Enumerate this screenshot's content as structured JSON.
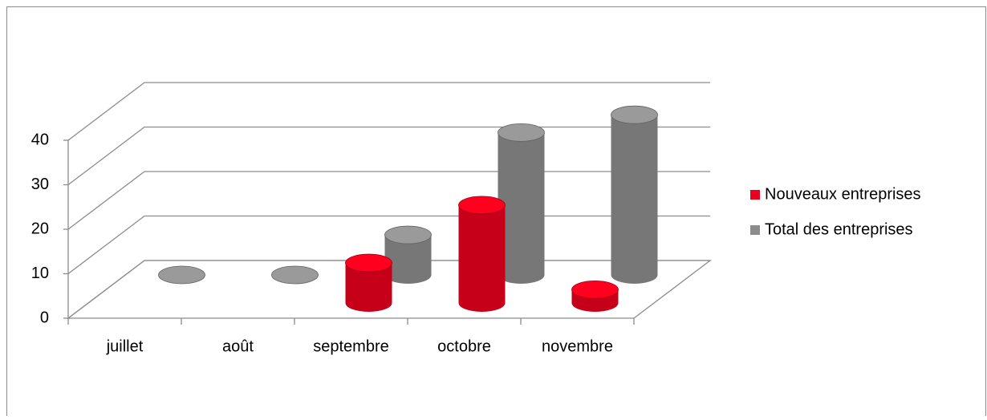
{
  "chart_data": {
    "type": "bar3d",
    "categories": [
      "juillet",
      "août",
      "septembre",
      "octobre",
      "novembre"
    ],
    "series": [
      {
        "name": "Nouveaux entreprises",
        "color": "#e8001c",
        "values": [
          null,
          null,
          9,
          22,
          3
        ]
      },
      {
        "name": "Total des entreprises",
        "color": "#8c8c8c",
        "values": [
          0,
          0,
          9,
          32,
          36
        ]
      }
    ],
    "ylim": [
      0,
      40
    ],
    "yticks": [
      0,
      10,
      20,
      30,
      40
    ],
    "grid": true,
    "legend": "right"
  }
}
